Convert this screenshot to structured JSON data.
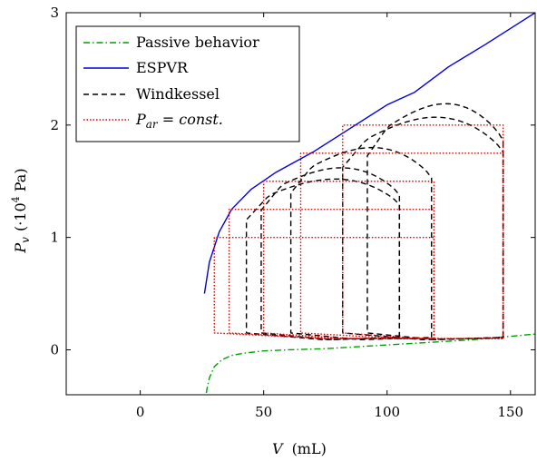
{
  "chart_data": {
    "type": "line",
    "title": "",
    "xlabel": "V (mL)",
    "ylabel": "Pv (·10⁴ Pa)",
    "xlim": [
      -30,
      160
    ],
    "ylim": [
      -0.4,
      3
    ],
    "xticks": [
      "0",
      "50",
      "100",
      "150"
    ],
    "yticks": [
      "0",
      "1",
      "2",
      "3"
    ],
    "xtick_values": [
      0,
      50,
      100,
      150
    ],
    "ytick_values": [
      0,
      1,
      2,
      3
    ],
    "grid": false,
    "legend_position": "top-left",
    "series": [
      {
        "name": "Passive behavior",
        "color": "#00a000",
        "dash": "dashdot",
        "x": [
          26,
          27,
          28,
          30,
          33,
          37,
          42,
          50,
          60,
          75,
          90,
          105,
          120,
          135,
          150,
          160
        ],
        "y": [
          -0.5,
          -0.35,
          -0.25,
          -0.15,
          -0.09,
          -0.05,
          -0.03,
          -0.01,
          0.0,
          0.01,
          0.03,
          0.05,
          0.07,
          0.09,
          0.12,
          0.14
        ]
      },
      {
        "name": "ESPVR",
        "color": "#0000dd",
        "dash": "solid",
        "x": [
          26,
          28,
          32,
          37,
          45,
          55,
          70,
          85,
          100,
          111,
          125,
          140,
          155,
          160
        ],
        "y": [
          0.5,
          0.78,
          1.05,
          1.25,
          1.43,
          1.58,
          1.76,
          1.97,
          2.18,
          2.29,
          2.52,
          2.72,
          2.93,
          3.0
        ]
      },
      {
        "name": "Windkessel",
        "color": "#000000",
        "dash": "dashed",
        "loops": [
          {
            "v_min": 43,
            "v_max": 105,
            "p_peak": 1.52
          },
          {
            "v_min": 49,
            "v_max": 105,
            "p_peak": 1.62
          },
          {
            "v_min": 61,
            "v_max": 118,
            "p_peak": 1.8
          },
          {
            "v_min": 82,
            "v_max": 147,
            "p_peak": 2.07
          },
          {
            "v_min": 92,
            "v_max": 147,
            "p_peak": 2.19
          }
        ]
      },
      {
        "name": "P_ar = const.",
        "color": "#e00000",
        "dash": "dotted",
        "loops": [
          {
            "v_min": 30,
            "v_max": 119,
            "p_top": 1.0
          },
          {
            "v_min": 36,
            "v_max": 119,
            "p_top": 1.25
          },
          {
            "v_min": 50,
            "v_max": 119,
            "p_top": 1.5
          },
          {
            "v_min": 65,
            "v_max": 147,
            "p_top": 1.75
          },
          {
            "v_min": 82,
            "v_max": 147,
            "p_top": 2.0
          }
        ]
      }
    ]
  },
  "legend": {
    "items": [
      {
        "label": "Passive behavior"
      },
      {
        "label": "ESPVR"
      },
      {
        "label": "Windkessel"
      },
      {
        "label_main": "P",
        "label_sub": "ar",
        "label_rest": " = const."
      }
    ]
  },
  "axes": {
    "xlabel_var": "V",
    "xlabel_unit": "(mL)",
    "ylabel_var": "P",
    "ylabel_sub": "v",
    "ylabel_unit_open": "(·10",
    "ylabel_unit_sup": "4",
    "ylabel_unit_close": " Pa)"
  }
}
